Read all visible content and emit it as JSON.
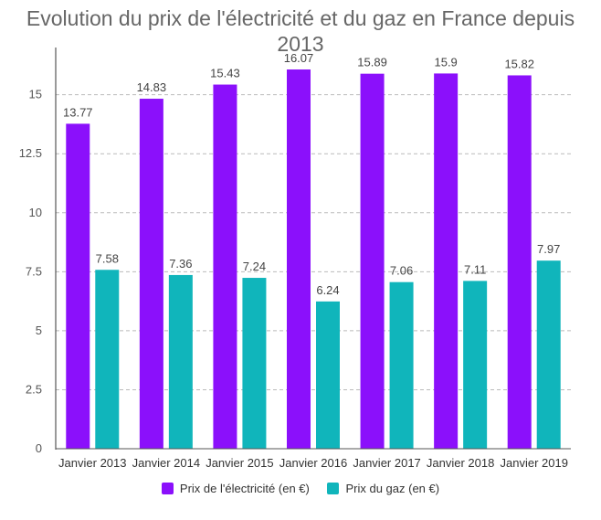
{
  "chart_data": {
    "type": "bar",
    "title": "Evolution du prix de l'électricité et du gaz en France depuis 2013",
    "title_lines": [
      "Evolution du prix de l'électricité et du gaz en France depuis",
      "2013"
    ],
    "categories": [
      "Janvier 2013",
      "Janvier 2014",
      "Janvier 2015",
      "Janvier 2016",
      "Janvier 2017",
      "Janvier 2018",
      "Janvier 2019"
    ],
    "series": [
      {
        "name": "Prix de l'électricité (en €)",
        "color": "#8b10fb",
        "values": [
          13.77,
          14.83,
          15.43,
          16.07,
          15.89,
          15.9,
          15.82
        ],
        "labels": [
          "13.77",
          "14.83",
          "15.43",
          "16.07",
          "15.89",
          "15.9",
          "15.82"
        ]
      },
      {
        "name": "Prix du gaz (en €)",
        "color": "#10b5bb",
        "values": [
          7.58,
          7.36,
          7.24,
          6.24,
          7.06,
          7.11,
          7.97
        ],
        "labels": [
          "7.58",
          "7.36",
          "7.24",
          "6.24",
          "7.06",
          "7.11",
          "7.97"
        ]
      }
    ],
    "yticks": [
      0,
      2.5,
      5,
      7.5,
      10,
      12.5,
      15
    ],
    "ytick_labels": [
      "0",
      "2.5",
      "5",
      "7.5",
      "10",
      "12.5",
      "15"
    ],
    "ylim": [
      0,
      17
    ],
    "xlabel": "",
    "ylabel": "",
    "grid": true,
    "legend": "bottom"
  }
}
